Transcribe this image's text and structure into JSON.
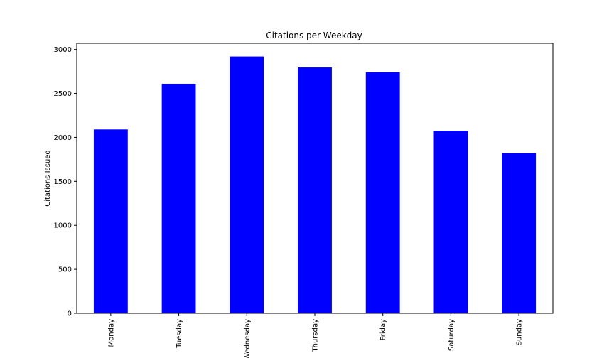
{
  "chart_data": {
    "type": "bar",
    "title": "Citations per Weekday",
    "xlabel": "",
    "ylabel": "Citations Issued",
    "categories": [
      "Monday",
      "Tuesday",
      "Wednesday",
      "Thursday",
      "Friday",
      "Saturday",
      "Sunday"
    ],
    "values": [
      2090,
      2610,
      2920,
      2795,
      2740,
      2075,
      1820
    ],
    "ylim": [
      0,
      3070
    ],
    "yticks": [
      0,
      500,
      1000,
      1500,
      2000,
      2500,
      3000
    ],
    "ytick_labels": [
      "0",
      "500",
      "1000",
      "1500",
      "2000",
      "2500",
      "3000"
    ],
    "bar_color": "#0000ff",
    "grid": false,
    "legend": "none"
  }
}
